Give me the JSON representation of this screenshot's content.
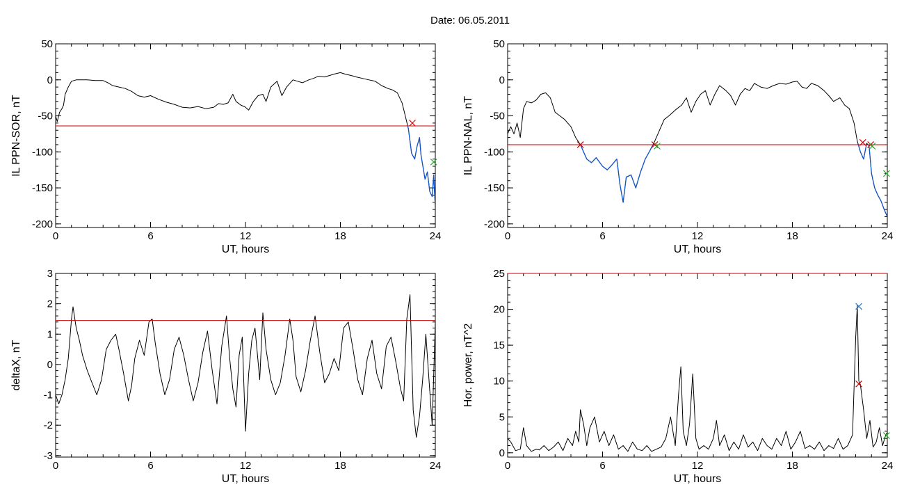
{
  "figure": {
    "title": "Date:  06.05.2011"
  },
  "chart_data": [
    {
      "id": "sor",
      "type": "line",
      "xlabel": "UT, hours",
      "ylabel": "IL PPN-SOR, nT",
      "xlim": [
        0,
        24
      ],
      "ylim": [
        -205,
        50
      ],
      "xticks": [
        0,
        6,
        12,
        18,
        24
      ],
      "yticks": [
        -200,
        -150,
        -100,
        -50,
        0,
        50
      ],
      "threshold": -64,
      "colors": {
        "line": "#000000",
        "threshold": "#cc0000",
        "below": "#1155cc",
        "marker_red": "#cc0000",
        "marker_green": "#22aa22"
      },
      "series": [
        {
          "x": [
            0,
            0.1,
            0.25,
            0.4,
            0.5,
            0.6,
            0.8,
            1,
            1.3,
            1.6,
            2,
            2.5,
            3,
            3.3,
            3.6,
            4,
            4.4,
            4.8,
            5.2,
            5.6,
            6,
            6.5,
            7,
            7.5,
            8,
            8.5,
            9,
            9.5,
            10,
            10.3,
            10.6,
            10.9,
            11.2,
            11.4,
            11.7,
            12,
            12.2,
            12.5,
            12.8,
            13.1,
            13.3,
            13.6,
            14,
            14.3,
            14.6,
            15,
            15.3,
            15.6,
            16,
            16.3,
            16.6,
            17,
            17.3,
            17.6,
            18,
            18.3,
            18.7,
            19,
            19.4,
            19.8,
            20.2,
            20.6,
            21,
            21.3,
            21.6,
            21.9,
            22.1,
            22.3,
            22.5,
            22.7,
            22.85,
            23,
            23.1,
            23.2,
            23.35,
            23.5,
            23.65,
            23.8,
            23.9,
            24
          ],
          "y": [
            -50,
            -58,
            -45,
            -40,
            -35,
            -20,
            -10,
            -2,
            0,
            0,
            0,
            -1,
            -1,
            -4,
            -8,
            -10,
            -12,
            -16,
            -22,
            -24,
            -22,
            -27,
            -31,
            -34,
            -38,
            -39,
            -37,
            -40,
            -38,
            -33,
            -34,
            -32,
            -20,
            -30,
            -35,
            -38,
            -42,
            -30,
            -22,
            -20,
            -30,
            -10,
            -2,
            -22,
            -10,
            0,
            -2,
            -4,
            0,
            2,
            5,
            4,
            6,
            8,
            10,
            8,
            6,
            4,
            2,
            0,
            -2,
            -8,
            -12,
            -14,
            -18,
            -32,
            -50,
            -68,
            -102,
            -110,
            -92,
            -80,
            -105,
            -118,
            -138,
            -128,
            -155,
            -162,
            -132,
            -178
          ]
        }
      ],
      "markers": [
        {
          "x": 22.55,
          "y": -60,
          "color": "red"
        },
        {
          "x": 23.9,
          "y": -114,
          "color": "green"
        }
      ]
    },
    {
      "id": "nal",
      "type": "line",
      "xlabel": "UT, hours",
      "ylabel": "IL PPN-NAL, nT",
      "xlim": [
        0,
        24
      ],
      "ylim": [
        -205,
        50
      ],
      "xticks": [
        0,
        6,
        12,
        18,
        24
      ],
      "yticks": [
        -200,
        -150,
        -100,
        -50,
        0,
        50
      ],
      "threshold": -90,
      "colors": {
        "line": "#000000",
        "threshold": "#cc0000",
        "below": "#1155cc",
        "marker_red": "#cc0000",
        "marker_green": "#22aa22"
      },
      "series": [
        {
          "x": [
            0,
            0.2,
            0.4,
            0.6,
            0.8,
            1,
            1.2,
            1.5,
            1.8,
            2.1,
            2.4,
            2.7,
            3,
            3.3,
            3.6,
            4,
            4.3,
            4.6,
            4.8,
            5,
            5.3,
            5.6,
            6,
            6.3,
            6.6,
            6.9,
            7.1,
            7.3,
            7.5,
            7.8,
            8.1,
            8.4,
            8.7,
            9,
            9.3,
            9.6,
            9.9,
            10.2,
            10.6,
            11,
            11.3,
            11.6,
            11.9,
            12.2,
            12.5,
            12.8,
            13.1,
            13.4,
            13.8,
            14.1,
            14.4,
            14.7,
            15,
            15.3,
            15.6,
            16,
            16.4,
            16.8,
            17.2,
            17.6,
            18,
            18.3,
            18.6,
            18.9,
            19.2,
            19.6,
            20,
            20.3,
            20.6,
            21,
            21.3,
            21.6,
            21.9,
            22.1,
            22.3,
            22.5,
            22.7,
            22.85,
            23,
            23.2,
            23.4,
            23.6,
            23.8,
            24
          ],
          "y": [
            -75,
            -65,
            -75,
            -60,
            -80,
            -40,
            -30,
            -32,
            -28,
            -20,
            -18,
            -25,
            -45,
            -50,
            -55,
            -65,
            -80,
            -90,
            -100,
            -110,
            -115,
            -108,
            -120,
            -125,
            -118,
            -110,
            -145,
            -170,
            -135,
            -132,
            -150,
            -128,
            -110,
            -98,
            -85,
            -70,
            -55,
            -50,
            -42,
            -35,
            -25,
            -45,
            -30,
            -20,
            -15,
            -35,
            -20,
            -8,
            -15,
            -22,
            -35,
            -20,
            -12,
            -15,
            -5,
            -10,
            -12,
            -8,
            -5,
            -6,
            -3,
            -2,
            -10,
            -12,
            -5,
            -8,
            -15,
            -22,
            -30,
            -25,
            -35,
            -40,
            -60,
            -85,
            -100,
            -110,
            -88,
            -92,
            -130,
            -150,
            -160,
            -168,
            -180,
            -190
          ]
        }
      ],
      "markers": [
        {
          "x": 4.6,
          "y": -90,
          "color": "red"
        },
        {
          "x": 9.3,
          "y": -90,
          "color": "red"
        },
        {
          "x": 9.45,
          "y": -92,
          "color": "green"
        },
        {
          "x": 22.45,
          "y": -87,
          "color": "red"
        },
        {
          "x": 22.95,
          "y": -90,
          "color": "red"
        },
        {
          "x": 23.05,
          "y": -92,
          "color": "green"
        },
        {
          "x": 23.95,
          "y": -130,
          "color": "green"
        }
      ]
    },
    {
      "id": "deltax",
      "type": "line",
      "xlabel": "UT, hours",
      "ylabel": "deltaX, nT",
      "xlim": [
        0,
        24
      ],
      "ylim": [
        -3.05,
        3
      ],
      "xticks": [
        0,
        6,
        12,
        18,
        24
      ],
      "yticks": [
        -3,
        -2,
        -1,
        0,
        1,
        2,
        3
      ],
      "threshold": 1.45,
      "colors": {
        "line": "#000000",
        "threshold": "#cc0000"
      },
      "series": [
        {
          "x": [
            0,
            0.2,
            0.4,
            0.6,
            0.8,
            1,
            1.1,
            1.3,
            1.5,
            1.7,
            2,
            2.3,
            2.6,
            2.9,
            3.2,
            3.5,
            3.8,
            4,
            4.3,
            4.6,
            4.8,
            5,
            5.3,
            5.6,
            5.9,
            6.1,
            6.3,
            6.6,
            6.9,
            7.2,
            7.5,
            7.8,
            8.1,
            8.4,
            8.7,
            9,
            9.3,
            9.6,
            9.9,
            10.2,
            10.5,
            10.8,
            11,
            11.2,
            11.4,
            11.6,
            11.8,
            12,
            12.2,
            12.4,
            12.6,
            12.9,
            13.1,
            13.3,
            13.6,
            13.9,
            14.2,
            14.5,
            14.8,
            15,
            15.2,
            15.5,
            15.8,
            16.1,
            16.4,
            16.7,
            17,
            17.3,
            17.6,
            17.9,
            18.2,
            18.5,
            18.8,
            19.1,
            19.4,
            19.7,
            20,
            20.3,
            20.6,
            20.9,
            21.2,
            21.5,
            21.8,
            22,
            22.2,
            22.4,
            22.6,
            22.8,
            23,
            23.2,
            23.4,
            23.6,
            23.8,
            24
          ],
          "y": [
            -1,
            -1.3,
            -1,
            -0.5,
            0.2,
            1.5,
            1.9,
            1.2,
            0.8,
            0.3,
            -0.2,
            -0.6,
            -1,
            -0.5,
            0.5,
            0.8,
            1,
            0.5,
            -0.3,
            -1.2,
            -0.7,
            0.2,
            0.8,
            0.3,
            1.4,
            1.5,
            0.7,
            -0.3,
            -1,
            -0.5,
            0.5,
            0.9,
            0.3,
            -0.5,
            -1.2,
            -0.6,
            0.4,
            1.1,
            -0.2,
            -1.3,
            0.6,
            1.6,
            0.2,
            -0.8,
            -1.4,
            0.3,
            0.9,
            -2.2,
            -0.3,
            0.8,
            1.2,
            -0.5,
            1.7,
            0.5,
            -0.5,
            -1,
            -0.6,
            0.3,
            1.5,
            0.8,
            -0.4,
            -0.9,
            -0.2,
            0.8,
            1.6,
            0.4,
            -0.6,
            -0.3,
            0.2,
            -0.2,
            1.2,
            1.4,
            0.5,
            -0.5,
            -1,
            0.2,
            0.8,
            -0.3,
            -0.8,
            0.6,
            0.9,
            0.1,
            -0.8,
            -1.2,
            1.5,
            2.3,
            -1.5,
            -2.4,
            -1.7,
            -0.5,
            1,
            -0.5,
            -2,
            1.4
          ]
        }
      ],
      "markers": []
    },
    {
      "id": "power",
      "type": "line",
      "xlabel": "UT, hours",
      "ylabel": "Hor. power, nT^2",
      "xlim": [
        0,
        24
      ],
      "ylim": [
        -0.6,
        25
      ],
      "xticks": [
        0,
        6,
        12,
        18,
        24
      ],
      "yticks": [
        0,
        5,
        10,
        15,
        20,
        25
      ],
      "threshold": 25,
      "colors": {
        "line": "#000000",
        "threshold": "#cc0000",
        "marker_red": "#cc0000",
        "marker_blue": "#2277cc",
        "marker_green": "#22aa22"
      },
      "series": [
        {
          "x": [
            0,
            0.2,
            0.5,
            0.8,
            1,
            1.2,
            1.5,
            1.8,
            2,
            2.3,
            2.6,
            2.9,
            3.2,
            3.5,
            3.8,
            4.1,
            4.3,
            4.5,
            4.6,
            4.8,
            5,
            5.2,
            5.5,
            5.8,
            6.1,
            6.4,
            6.7,
            7,
            7.3,
            7.6,
            7.9,
            8.2,
            8.5,
            8.8,
            9.1,
            9.4,
            9.7,
            10,
            10.3,
            10.6,
            10.8,
            10.95,
            11.1,
            11.3,
            11.5,
            11.7,
            11.9,
            12.1,
            12.4,
            12.7,
            13,
            13.2,
            13.4,
            13.7,
            14,
            14.3,
            14.6,
            14.9,
            15.2,
            15.5,
            15.8,
            16.1,
            16.4,
            16.7,
            17,
            17.3,
            17.6,
            17.9,
            18.2,
            18.5,
            18.8,
            19.1,
            19.4,
            19.7,
            20,
            20.3,
            20.6,
            20.9,
            21.2,
            21.5,
            21.8,
            22,
            22.1,
            22.2,
            22.3,
            22.5,
            22.7,
            22.9,
            23.1,
            23.3,
            23.5,
            23.7,
            23.9,
            24
          ],
          "y": [
            2,
            1.5,
            0.3,
            0.5,
            3.5,
            1,
            0.2,
            0.5,
            0.4,
            1,
            0.3,
            0.8,
            1.5,
            0.3,
            2,
            1,
            3,
            1.5,
            6,
            4,
            1,
            3.5,
            5,
            1.5,
            3,
            1,
            2.5,
            0.5,
            1,
            0.2,
            1.5,
            0.5,
            0.3,
            1,
            0.2,
            0.5,
            0.8,
            2,
            5,
            1,
            8,
            12,
            3,
            1,
            4,
            11,
            2,
            0.5,
            1,
            0.5,
            2,
            4.5,
            1,
            2.5,
            0.3,
            1.5,
            0.5,
            2.5,
            0.8,
            1.5,
            0.3,
            2,
            1,
            0.5,
            2,
            1,
            3,
            0.5,
            1.5,
            3,
            0.6,
            1,
            0.5,
            1.5,
            0.3,
            1,
            0.6,
            2,
            0.5,
            1,
            2.5,
            16,
            20.5,
            10,
            9.5,
            6,
            2,
            4.5,
            0.8,
            1.5,
            3.5,
            1,
            2.5,
            2.8
          ]
        }
      ],
      "markers": [
        {
          "x": 22.2,
          "y": 9.6,
          "color": "red"
        },
        {
          "x": 22.2,
          "y": 20.4,
          "color": "blue"
        },
        {
          "x": 23.95,
          "y": 2.4,
          "color": "green"
        }
      ]
    }
  ]
}
